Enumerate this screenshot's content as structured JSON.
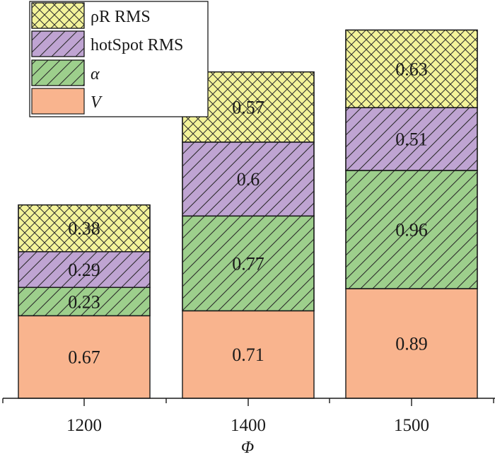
{
  "chart_data": {
    "type": "bar",
    "stacked": true,
    "categories": [
      "1200",
      "1400",
      "1500"
    ],
    "series": [
      {
        "name": "V",
        "values": [
          0.67,
          0.71,
          0.89
        ],
        "color": "#f9b48e",
        "pattern": "none"
      },
      {
        "name": "α",
        "values": [
          0.23,
          0.77,
          0.96
        ],
        "color": "#9dcf8c",
        "pattern": "diagonal"
      },
      {
        "name": "hotSpot RMS",
        "values": [
          0.29,
          0.6,
          0.51
        ],
        "color": "#bfa4d2",
        "pattern": "diagonal"
      },
      {
        "name": "ρR RMS",
        "values": [
          0.38,
          0.57,
          0.63
        ],
        "color": "#f3f39a",
        "pattern": "crosshatch"
      }
    ],
    "data_labels": [
      [
        "0.67",
        "0.71",
        "0.89"
      ],
      [
        "0.23",
        "0.77",
        "0.96"
      ],
      [
        "0.29",
        "0.6",
        "0.51"
      ],
      [
        "0.38",
        "0.57",
        "0.63"
      ]
    ],
    "xlabel": "Φ",
    "ylabel": "",
    "ylim": [
      0,
      3.05
    ],
    "grid": false,
    "legend_position": "top-left",
    "legend_order": [
      "ρR RMS",
      "hotSpot RMS",
      "α",
      "V"
    ],
    "legend_italic": [
      "α",
      "V"
    ]
  }
}
